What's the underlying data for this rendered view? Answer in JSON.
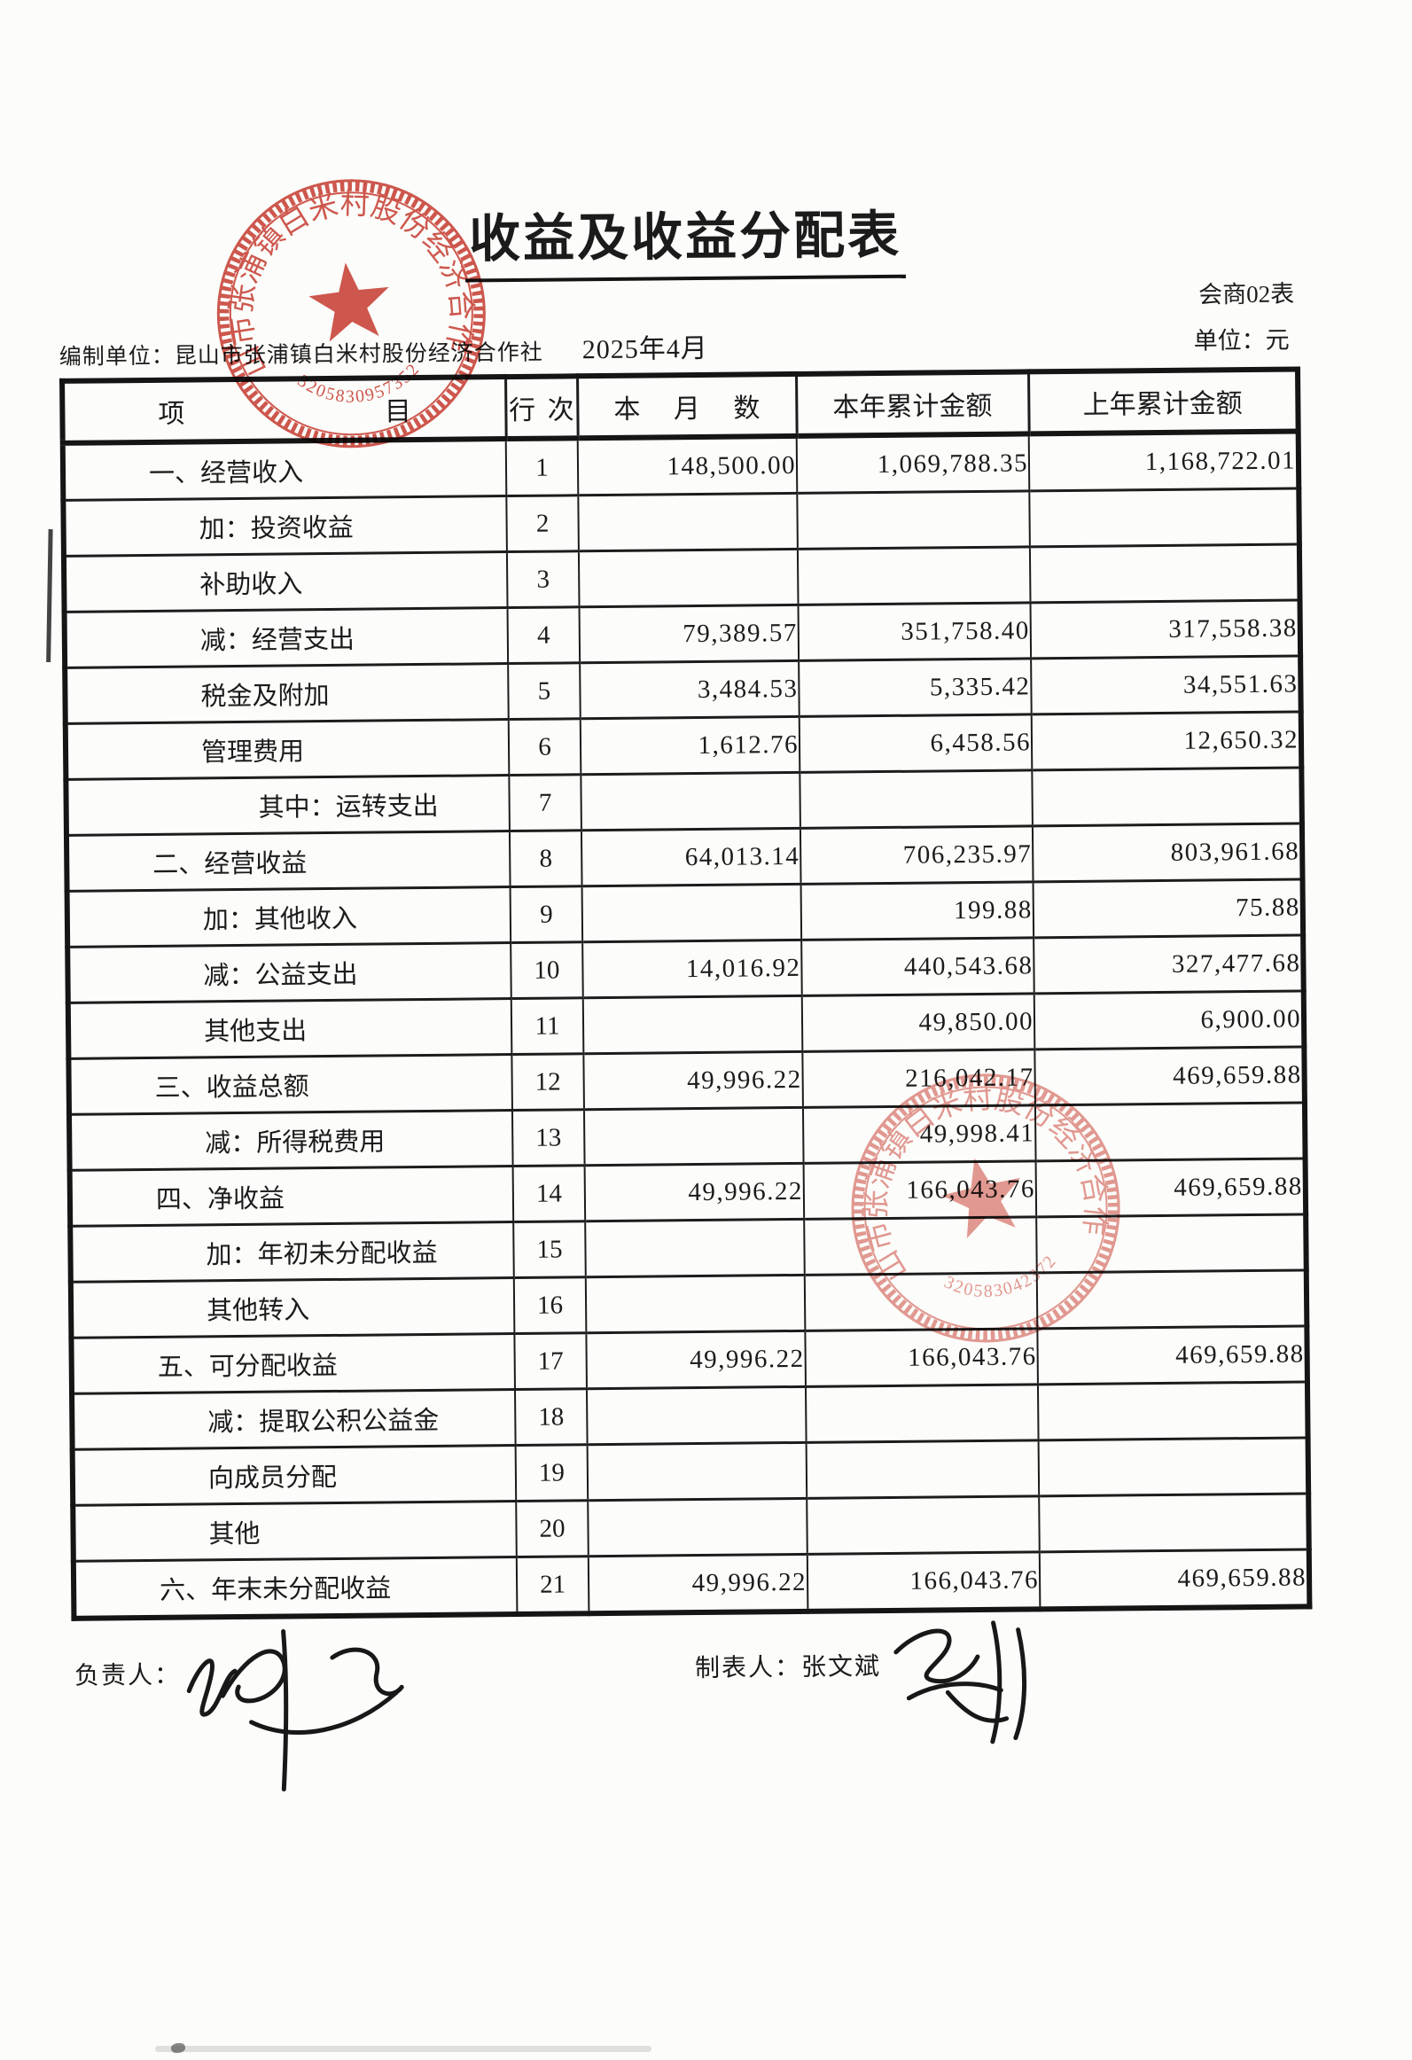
{
  "document": {
    "title": "收益及收益分配表",
    "form_code": "会商02表",
    "prepared_by_label": "编制单位：",
    "prepared_by": "昆山市张浦镇白米村股份经济合作社",
    "period": "2025年4月",
    "unit_label": "单位：元"
  },
  "table": {
    "headers": {
      "item": "项 目",
      "line_no": "行 次",
      "month": "本 月 数",
      "year_total": "本年累计金额",
      "prev_year_total": "上年累计金额"
    },
    "rows": [
      {
        "item": "一、经营收入",
        "line_no": "1",
        "month": "148,500.00",
        "year_total": "1,069,788.35",
        "prev_year_total": "1,168,722.01",
        "indent": 0
      },
      {
        "item": "加：投资收益",
        "line_no": "2",
        "month": "",
        "year_total": "",
        "prev_year_total": "",
        "indent": 1
      },
      {
        "item": "补助收入",
        "line_no": "3",
        "month": "",
        "year_total": "",
        "prev_year_total": "",
        "indent": 1
      },
      {
        "item": "减：经营支出",
        "line_no": "4",
        "month": "79,389.57",
        "year_total": "351,758.40",
        "prev_year_total": "317,558.38",
        "indent": 1
      },
      {
        "item": "税金及附加",
        "line_no": "5",
        "month": "3,484.53",
        "year_total": "5,335.42",
        "prev_year_total": "34,551.63",
        "indent": 1
      },
      {
        "item": "管理费用",
        "line_no": "6",
        "month": "1,612.76",
        "year_total": "6,458.56",
        "prev_year_total": "12,650.32",
        "indent": 1
      },
      {
        "item": "其中：运转支出",
        "line_no": "7",
        "month": "",
        "year_total": "",
        "prev_year_total": "",
        "indent": 2
      },
      {
        "item": "二、经营收益",
        "line_no": "8",
        "month": "64,013.14",
        "year_total": "706,235.97",
        "prev_year_total": "803,961.68",
        "indent": 0
      },
      {
        "item": "加：其他收入",
        "line_no": "9",
        "month": "",
        "year_total": "199.88",
        "prev_year_total": "75.88",
        "indent": 1
      },
      {
        "item": "减：公益支出",
        "line_no": "10",
        "month": "14,016.92",
        "year_total": "440,543.68",
        "prev_year_total": "327,477.68",
        "indent": 1
      },
      {
        "item": "其他支出",
        "line_no": "11",
        "month": "",
        "year_total": "49,850.00",
        "prev_year_total": "6,900.00",
        "indent": 1
      },
      {
        "item": "三、收益总额",
        "line_no": "12",
        "month": "49,996.22",
        "year_total": "216,042.17",
        "prev_year_total": "469,659.88",
        "indent": 0
      },
      {
        "item": "减：所得税费用",
        "line_no": "13",
        "month": "",
        "year_total": "49,998.41",
        "prev_year_total": "",
        "indent": 1
      },
      {
        "item": "四、净收益",
        "line_no": "14",
        "month": "49,996.22",
        "year_total": "166,043.76",
        "prev_year_total": "469,659.88",
        "indent": 0
      },
      {
        "item": "加：年初未分配收益",
        "line_no": "15",
        "month": "",
        "year_total": "",
        "prev_year_total": "",
        "indent": 1
      },
      {
        "item": "其他转入",
        "line_no": "16",
        "month": "",
        "year_total": "",
        "prev_year_total": "",
        "indent": 1
      },
      {
        "item": "五、可分配收益",
        "line_no": "17",
        "month": "49,996.22",
        "year_total": "166,043.76",
        "prev_year_total": "469,659.88",
        "indent": 0
      },
      {
        "item": "减：提取公积公益金",
        "line_no": "18",
        "month": "",
        "year_total": "",
        "prev_year_total": "",
        "indent": 1
      },
      {
        "item": "向成员分配",
        "line_no": "19",
        "month": "",
        "year_total": "",
        "prev_year_total": "",
        "indent": 1
      },
      {
        "item": "其他",
        "line_no": "20",
        "month": "",
        "year_total": "",
        "prev_year_total": "",
        "indent": 1
      },
      {
        "item": "六、年末未分配收益",
        "line_no": "21",
        "month": "49,996.22",
        "year_total": "166,043.76",
        "prev_year_total": "469,659.88",
        "indent": 0
      }
    ]
  },
  "footer": {
    "responsible_label": "负责人：",
    "preparer_label": "制表人：",
    "preparer_name": "张文斌"
  },
  "stamps": [
    {
      "org_text": "昆山市张浦镇白米村股份经济合作社",
      "number": "3205830957352",
      "color": "#c4392d"
    },
    {
      "org_text": "昆山市张浦镇白米村股份经济合作社",
      "number": "320583042372",
      "color": "#cd5448"
    }
  ]
}
